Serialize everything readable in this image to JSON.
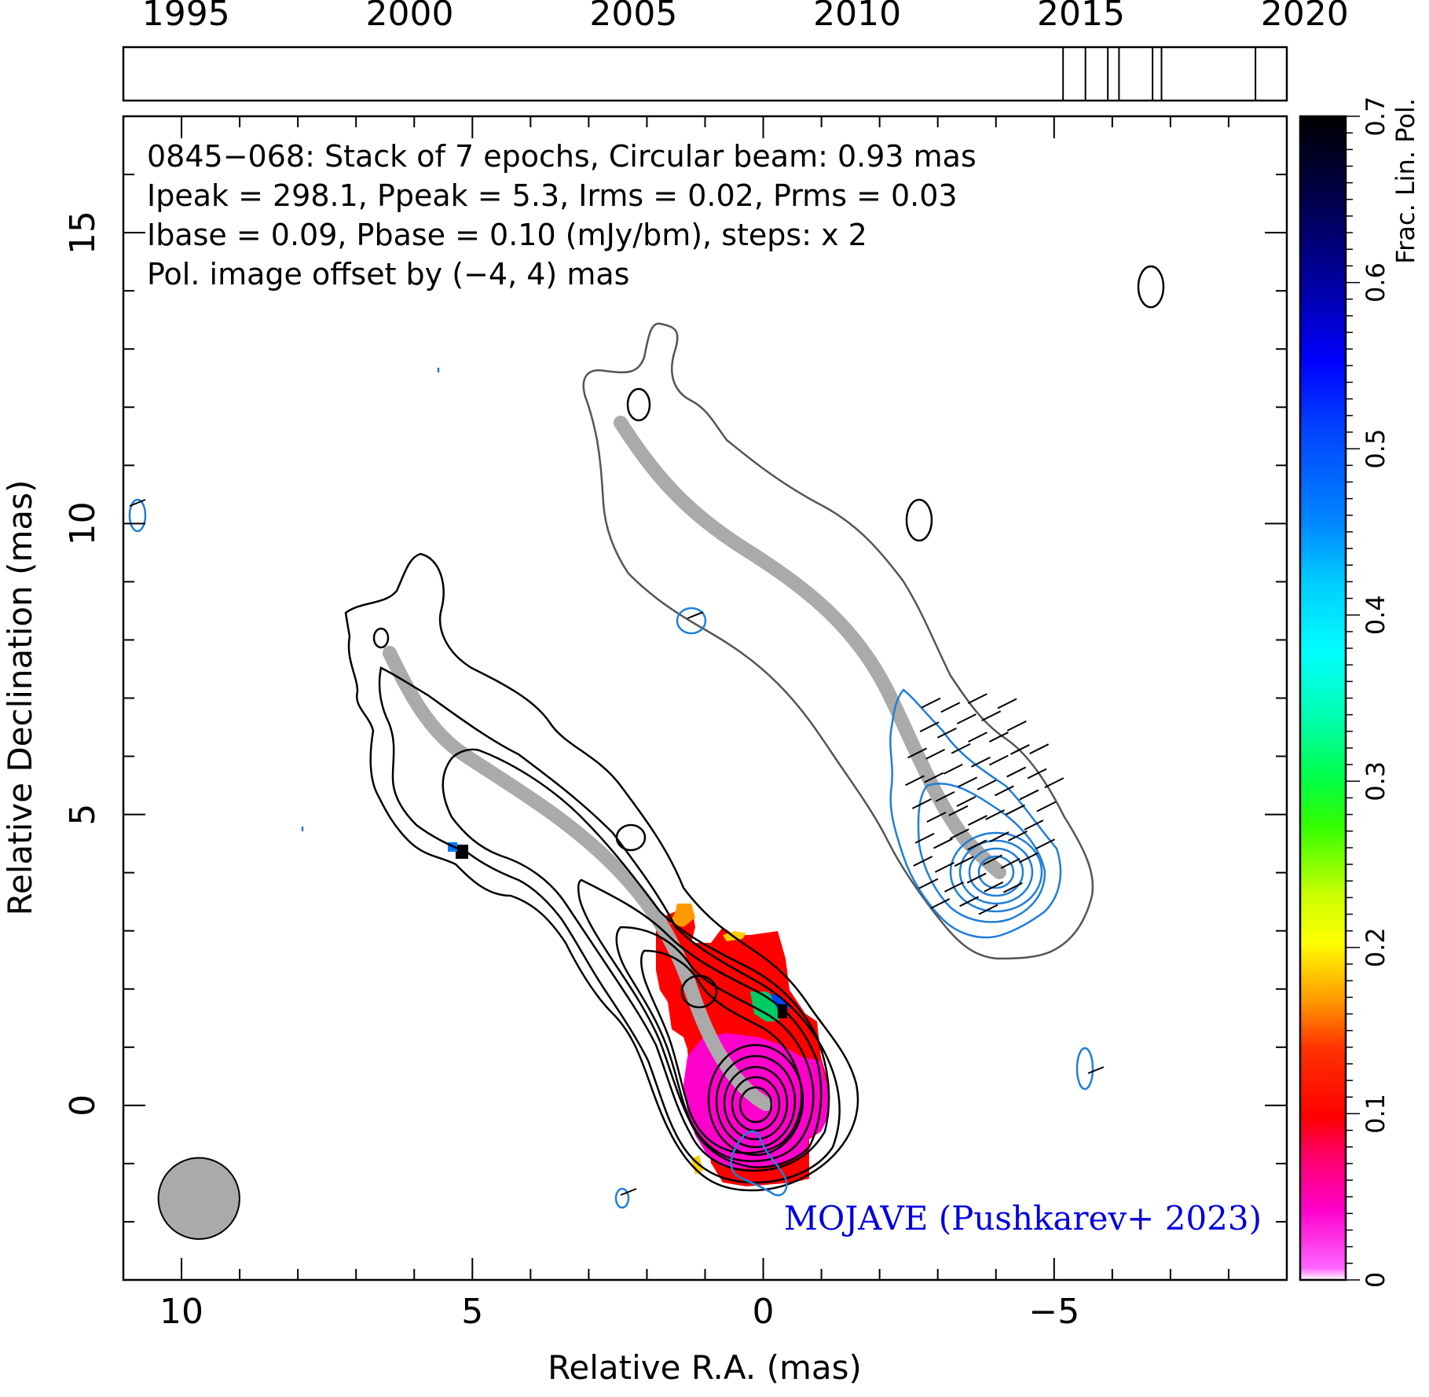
{
  "timeline": {
    "years": [
      "1995",
      "2000",
      "2005",
      "2010",
      "2015",
      "2020"
    ],
    "year_range": [
      1993.6,
      2019.6
    ],
    "epochs": [
      2014.6,
      2015.1,
      2015.6,
      2015.85,
      2016.6,
      2016.8,
      2018.9
    ]
  },
  "header": {
    "line1": "0845−068: Stack of 7 epochs, Circular beam: 0.93 mas",
    "line2": "Ipeak = 298.1, Ppeak = 5.3, Irms = 0.02, Prms = 0.03",
    "line3": "Ibase = 0.09, Pbase = 0.10 (mJy/bm), steps: x 2",
    "line4": "Pol. image offset by (−4, 4) mas",
    "line4_color": "#1f7fd8"
  },
  "credit": {
    "text": "MOJAVE (Pushkarev+ 2023)",
    "color": "#0000e0"
  },
  "axes": {
    "xlabel": "Relative R.A. (mas)",
    "ylabel": "Relative Declination (mas)",
    "xlim": [
      11.0,
      -9.0
    ],
    "ylim": [
      -3.0,
      17.0
    ],
    "xticks": [
      "10",
      "5",
      "0",
      "−5"
    ],
    "xtick_values": [
      10,
      5,
      0,
      -5
    ],
    "yticks": [
      "0",
      "5",
      "10",
      "15"
    ],
    "ytick_values": [
      0,
      5,
      10,
      15
    ]
  },
  "beam": {
    "diameter_mas": 0.93,
    "ra": 9.7,
    "dec": -1.6,
    "color": "#aaaaaa"
  },
  "colorbar": {
    "label": "Frac. Lin. Pol.",
    "ticks": [
      "0",
      "0.1",
      "0.2",
      "0.3",
      "0.4",
      "0.5",
      "0.6",
      "0.7"
    ],
    "tick_values": [
      0,
      0.1,
      0.2,
      0.3,
      0.4,
      0.5,
      0.6,
      0.7
    ],
    "range": [
      0,
      0.7
    ]
  },
  "colors": {
    "ridge": "#aaaaaa",
    "stokes_i_contour": "#000000",
    "pol_contour": "#1f7fd8",
    "pol_offset_contour": "#555555",
    "evpa": "#000000"
  }
}
